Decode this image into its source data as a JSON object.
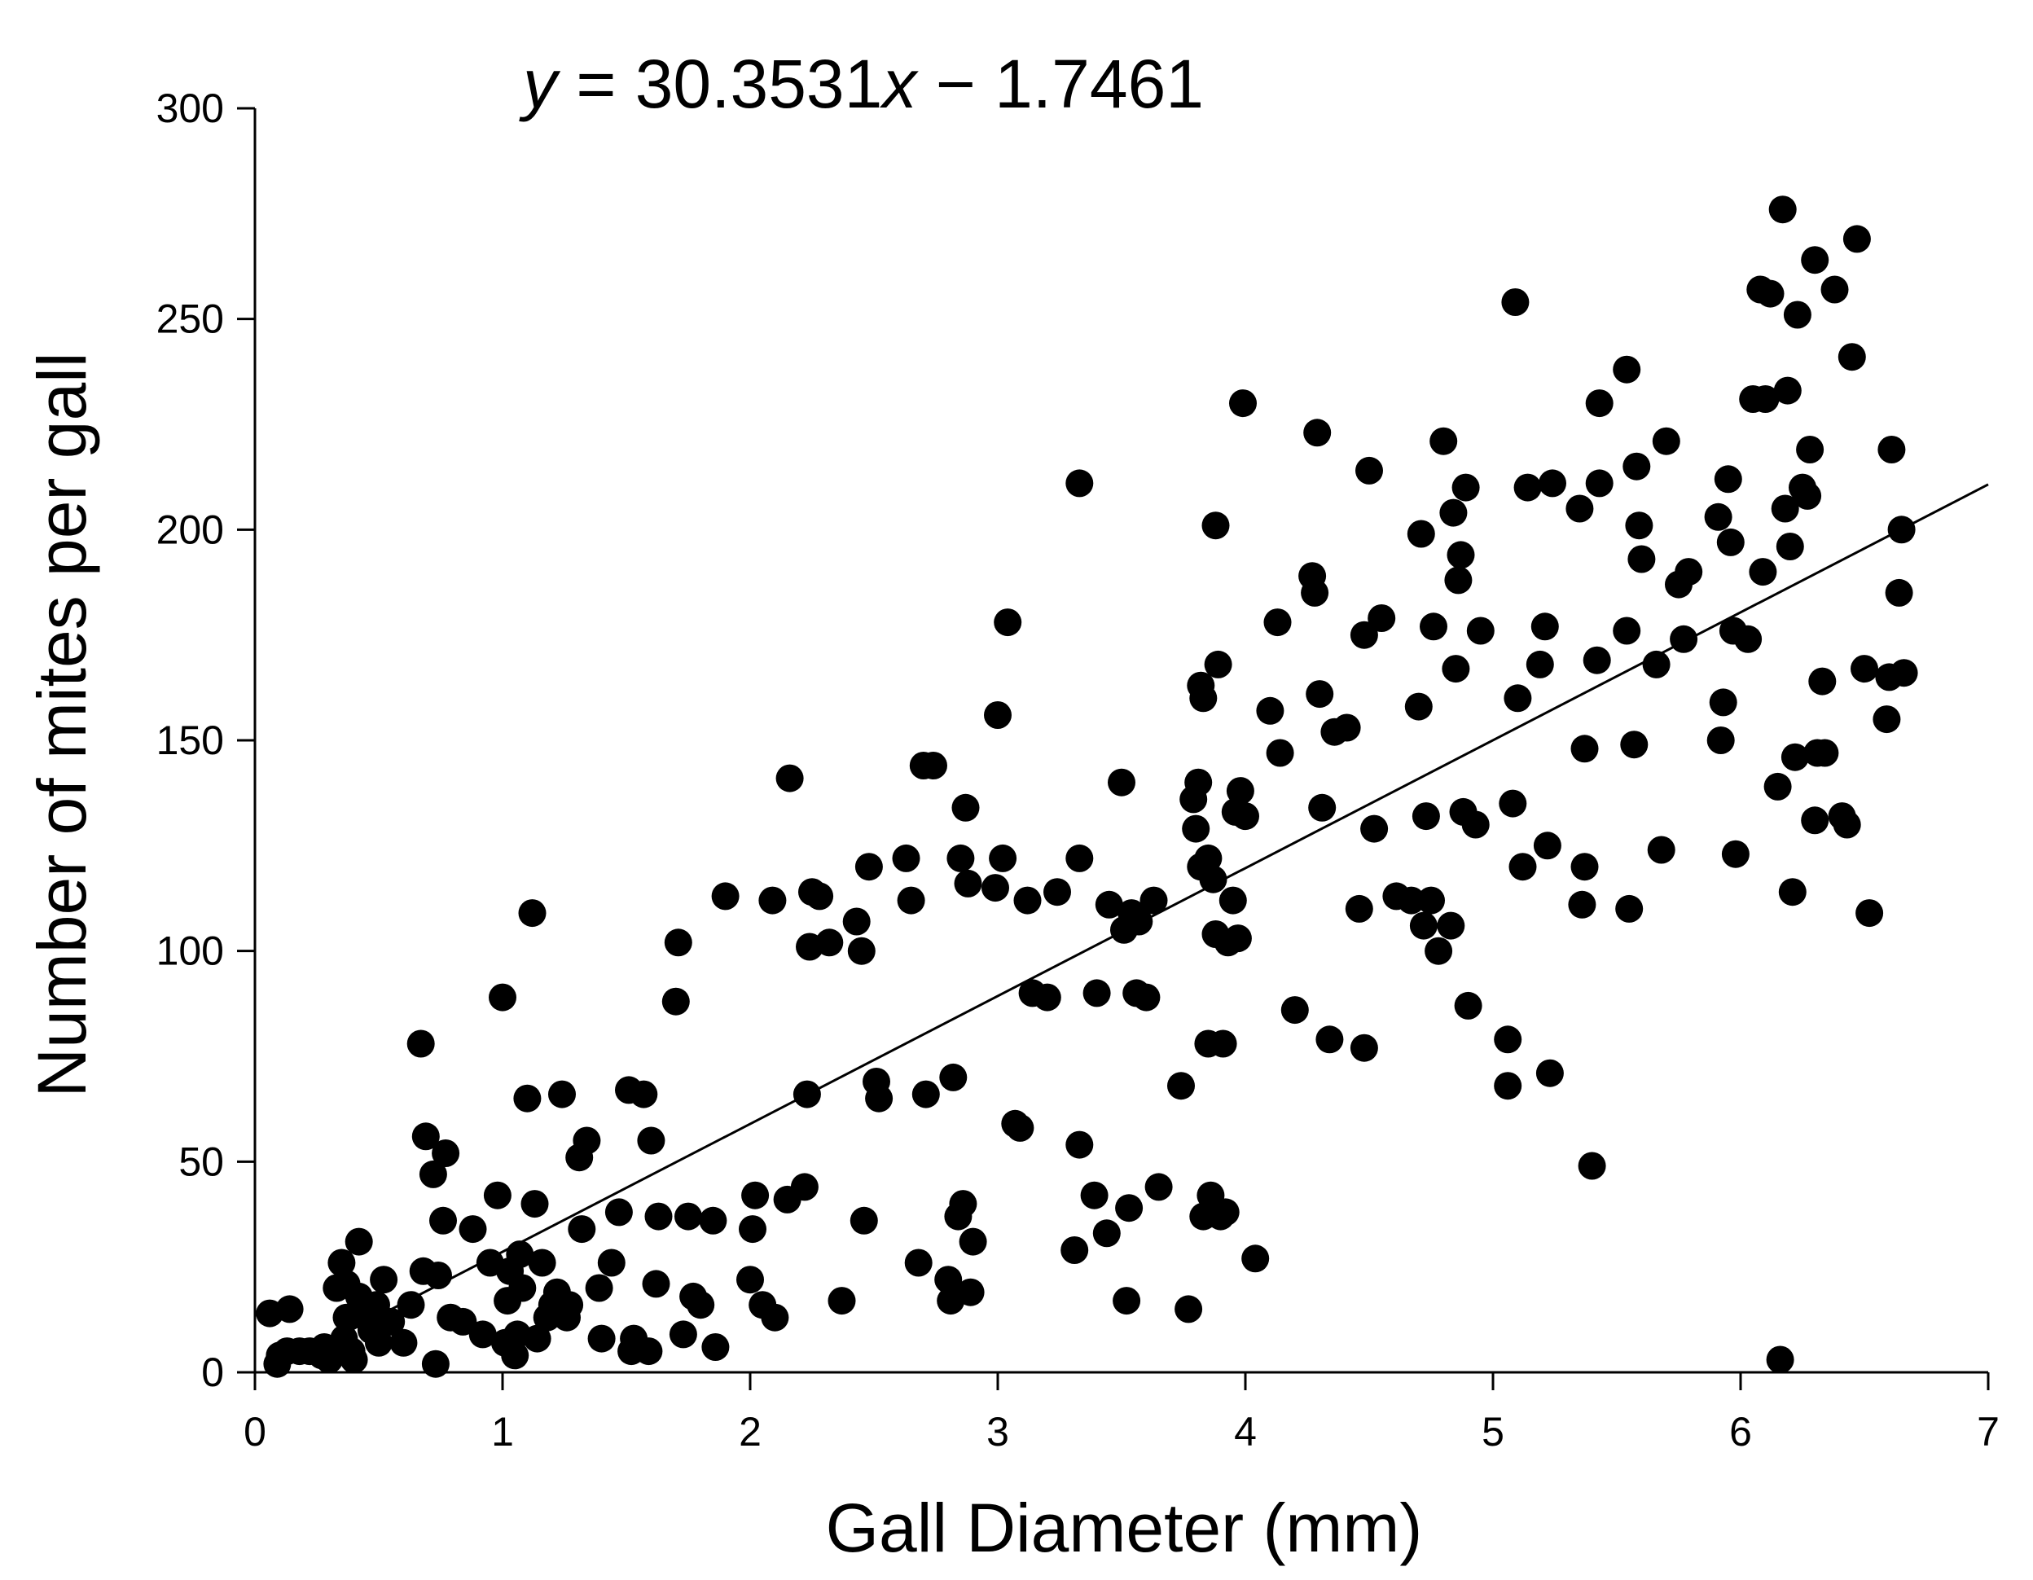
{
  "chart_data": {
    "type": "scatter",
    "title_parts": [
      {
        "text": "y",
        "italic": true
      },
      {
        "text": " = 30.3531",
        "italic": false
      },
      {
        "text": "x",
        "italic": true
      },
      {
        "text": " − 1.7461",
        "italic": false
      }
    ],
    "xlabel": "Gall Diameter (mm)",
    "ylabel": "Number of mites per gall",
    "xlim": [
      0,
      7
    ],
    "ylim": [
      0,
      300
    ],
    "x_ticks": [
      0,
      1,
      2,
      3,
      4,
      5,
      6,
      7
    ],
    "y_ticks": [
      0,
      50,
      100,
      150,
      200,
      250,
      300
    ],
    "grid": false,
    "legend": "none",
    "point_color": "#000000",
    "trendline": {
      "slope": 30.3531,
      "intercept": -1.7461,
      "x_range": [
        0.05,
        7.0
      ],
      "color": "#000000"
    },
    "series": [
      {
        "points": [
          [
            0.06,
            14
          ],
          [
            0.09,
            2
          ],
          [
            0.1,
            4
          ],
          [
            0.13,
            5
          ],
          [
            0.14,
            15
          ],
          [
            0.18,
            5
          ],
          [
            0.22,
            5
          ],
          [
            0.27,
            4
          ],
          [
            0.28,
            6
          ],
          [
            0.3,
            3
          ],
          [
            0.33,
            20
          ],
          [
            0.35,
            26
          ],
          [
            0.36,
            8
          ],
          [
            0.37,
            13
          ],
          [
            0.37,
            21
          ],
          [
            0.39,
            5
          ],
          [
            0.4,
            3
          ],
          [
            0.42,
            18
          ],
          [
            0.42,
            31
          ],
          [
            0.45,
            13
          ],
          [
            0.47,
            10
          ],
          [
            0.49,
            16
          ],
          [
            0.5,
            7
          ],
          [
            0.52,
            22
          ],
          [
            0.55,
            12
          ],
          [
            0.6,
            7
          ],
          [
            0.63,
            16
          ],
          [
            0.67,
            78
          ],
          [
            0.68,
            24
          ],
          [
            0.69,
            56
          ],
          [
            0.72,
            47
          ],
          [
            0.73,
            2
          ],
          [
            0.74,
            23
          ],
          [
            0.76,
            36
          ],
          [
            0.77,
            52
          ],
          [
            0.79,
            13
          ],
          [
            0.84,
            12
          ],
          [
            0.88,
            34
          ],
          [
            0.92,
            9
          ],
          [
            0.95,
            26
          ],
          [
            0.98,
            42
          ],
          [
            1.0,
            89
          ],
          [
            1.01,
            7
          ],
          [
            1.02,
            17
          ],
          [
            1.03,
            24
          ],
          [
            1.05,
            4
          ],
          [
            1.06,
            9
          ],
          [
            1.07,
            28
          ],
          [
            1.08,
            20
          ],
          [
            1.1,
            65
          ],
          [
            1.12,
            109
          ],
          [
            1.13,
            40
          ],
          [
            1.14,
            8
          ],
          [
            1.16,
            26
          ],
          [
            1.18,
            13
          ],
          [
            1.2,
            16
          ],
          [
            1.22,
            19
          ],
          [
            1.24,
            66
          ],
          [
            1.26,
            13
          ],
          [
            1.27,
            16
          ],
          [
            1.31,
            51
          ],
          [
            1.32,
            34
          ],
          [
            1.34,
            55
          ],
          [
            1.39,
            20
          ],
          [
            1.4,
            8
          ],
          [
            1.44,
            26
          ],
          [
            1.47,
            38
          ],
          [
            1.51,
            67
          ],
          [
            1.52,
            5
          ],
          [
            1.53,
            8
          ],
          [
            1.57,
            66
          ],
          [
            1.59,
            5
          ],
          [
            1.6,
            55
          ],
          [
            1.62,
            21
          ],
          [
            1.63,
            37
          ],
          [
            1.7,
            88
          ],
          [
            1.71,
            102
          ],
          [
            1.73,
            9
          ],
          [
            1.75,
            37
          ],
          [
            1.77,
            18
          ],
          [
            1.8,
            16
          ],
          [
            1.85,
            36
          ],
          [
            1.86,
            6
          ],
          [
            1.9,
            113
          ],
          [
            2.0,
            22
          ],
          [
            2.01,
            34
          ],
          [
            2.02,
            42
          ],
          [
            2.05,
            16
          ],
          [
            2.09,
            112
          ],
          [
            2.1,
            13
          ],
          [
            2.15,
            41
          ],
          [
            2.16,
            141
          ],
          [
            2.22,
            44
          ],
          [
            2.23,
            66
          ],
          [
            2.24,
            101
          ],
          [
            2.25,
            114
          ],
          [
            2.28,
            113
          ],
          [
            2.32,
            102
          ],
          [
            2.37,
            17
          ],
          [
            2.43,
            107
          ],
          [
            2.45,
            100
          ],
          [
            2.46,
            36
          ],
          [
            2.48,
            120
          ],
          [
            2.51,
            69
          ],
          [
            2.52,
            65
          ],
          [
            2.63,
            122
          ],
          [
            2.65,
            112
          ],
          [
            2.68,
            26
          ],
          [
            2.7,
            144
          ],
          [
            2.71,
            66
          ],
          [
            2.74,
            144
          ],
          [
            2.8,
            22
          ],
          [
            2.81,
            17
          ],
          [
            2.82,
            70
          ],
          [
            2.84,
            37
          ],
          [
            2.85,
            122
          ],
          [
            2.86,
            40
          ],
          [
            2.87,
            134
          ],
          [
            2.88,
            116
          ],
          [
            2.89,
            19
          ],
          [
            2.9,
            31
          ],
          [
            2.99,
            115
          ],
          [
            3.0,
            156
          ],
          [
            3.02,
            122
          ],
          [
            3.04,
            178
          ],
          [
            3.07,
            59
          ],
          [
            3.09,
            58
          ],
          [
            3.12,
            112
          ],
          [
            3.14,
            90
          ],
          [
            3.2,
            89
          ],
          [
            3.24,
            114
          ],
          [
            3.31,
            29
          ],
          [
            3.33,
            54
          ],
          [
            3.33,
            211
          ],
          [
            3.33,
            122
          ],
          [
            3.39,
            42
          ],
          [
            3.4,
            90
          ],
          [
            3.44,
            33
          ],
          [
            3.45,
            111
          ],
          [
            3.5,
            140
          ],
          [
            3.51,
            105
          ],
          [
            3.52,
            17
          ],
          [
            3.53,
            39
          ],
          [
            3.54,
            109
          ],
          [
            3.56,
            90
          ],
          [
            3.57,
            107
          ],
          [
            3.6,
            89
          ],
          [
            3.63,
            112
          ],
          [
            3.65,
            44
          ],
          [
            3.74,
            68
          ],
          [
            3.77,
            15
          ],
          [
            3.79,
            136
          ],
          [
            3.8,
            129
          ],
          [
            3.81,
            140
          ],
          [
            3.82,
            120
          ],
          [
            3.82,
            163
          ],
          [
            3.83,
            37
          ],
          [
            3.83,
            160
          ],
          [
            3.85,
            122
          ],
          [
            3.85,
            78
          ],
          [
            3.86,
            42
          ],
          [
            3.87,
            117
          ],
          [
            3.88,
            201
          ],
          [
            3.88,
            104
          ],
          [
            3.89,
            168
          ],
          [
            3.9,
            37
          ],
          [
            3.91,
            78
          ],
          [
            3.92,
            38
          ],
          [
            3.93,
            102
          ],
          [
            3.95,
            112
          ],
          [
            3.96,
            133
          ],
          [
            3.97,
            103
          ],
          [
            3.98,
            138
          ],
          [
            3.99,
            230
          ],
          [
            4.0,
            132
          ],
          [
            4.04,
            27
          ],
          [
            4.1,
            157
          ],
          [
            4.13,
            178
          ],
          [
            4.14,
            147
          ],
          [
            4.2,
            86
          ],
          [
            4.27,
            189
          ],
          [
            4.28,
            185
          ],
          [
            4.29,
            223
          ],
          [
            4.3,
            161
          ],
          [
            4.31,
            134
          ],
          [
            4.34,
            79
          ],
          [
            4.36,
            152
          ],
          [
            4.41,
            153
          ],
          [
            4.46,
            110
          ],
          [
            4.48,
            175
          ],
          [
            4.48,
            77
          ],
          [
            4.5,
            214
          ],
          [
            4.52,
            129
          ],
          [
            4.55,
            179
          ],
          [
            4.61,
            113
          ],
          [
            4.67,
            112
          ],
          [
            4.7,
            158
          ],
          [
            4.71,
            199
          ],
          [
            4.72,
            106
          ],
          [
            4.73,
            132
          ],
          [
            4.75,
            112
          ],
          [
            4.76,
            177
          ],
          [
            4.78,
            100
          ],
          [
            4.8,
            221
          ],
          [
            4.83,
            106
          ],
          [
            4.84,
            204
          ],
          [
            4.85,
            167
          ],
          [
            4.86,
            188
          ],
          [
            4.87,
            194
          ],
          [
            4.88,
            133
          ],
          [
            4.89,
            210
          ],
          [
            4.9,
            87
          ],
          [
            4.93,
            130
          ],
          [
            4.95,
            176
          ],
          [
            5.06,
            79
          ],
          [
            5.06,
            68
          ],
          [
            5.08,
            135
          ],
          [
            5.09,
            254
          ],
          [
            5.1,
            160
          ],
          [
            5.12,
            120
          ],
          [
            5.14,
            210
          ],
          [
            5.19,
            168
          ],
          [
            5.21,
            177
          ],
          [
            5.22,
            125
          ],
          [
            5.23,
            71
          ],
          [
            5.24,
            211
          ],
          [
            5.35,
            205
          ],
          [
            5.36,
            111
          ],
          [
            5.37,
            148
          ],
          [
            5.37,
            120
          ],
          [
            5.4,
            49
          ],
          [
            5.42,
            169
          ],
          [
            5.43,
            230
          ],
          [
            5.43,
            211
          ],
          [
            5.54,
            176
          ],
          [
            5.54,
            238
          ],
          [
            5.55,
            110
          ],
          [
            5.57,
            149
          ],
          [
            5.58,
            215
          ],
          [
            5.59,
            201
          ],
          [
            5.6,
            193
          ],
          [
            5.66,
            168
          ],
          [
            5.68,
            124
          ],
          [
            5.7,
            221
          ],
          [
            5.75,
            187
          ],
          [
            5.77,
            174
          ],
          [
            5.79,
            190
          ],
          [
            5.91,
            203
          ],
          [
            5.92,
            150
          ],
          [
            5.93,
            159
          ],
          [
            5.95,
            212
          ],
          [
            5.96,
            197
          ],
          [
            5.97,
            176
          ],
          [
            5.98,
            123
          ],
          [
            6.03,
            174
          ],
          [
            6.05,
            231
          ],
          [
            6.08,
            257
          ],
          [
            6.09,
            190
          ],
          [
            6.1,
            231
          ],
          [
            6.12,
            256
          ],
          [
            6.15,
            139
          ],
          [
            6.16,
            3
          ],
          [
            6.17,
            276
          ],
          [
            6.18,
            205
          ],
          [
            6.19,
            233
          ],
          [
            6.2,
            196
          ],
          [
            6.21,
            114
          ],
          [
            6.22,
            146
          ],
          [
            6.23,
            251
          ],
          [
            6.25,
            210
          ],
          [
            6.27,
            208
          ],
          [
            6.28,
            219
          ],
          [
            6.3,
            131
          ],
          [
            6.3,
            264
          ],
          [
            6.31,
            147
          ],
          [
            6.33,
            164
          ],
          [
            6.34,
            147
          ],
          [
            6.38,
            257
          ],
          [
            6.41,
            132
          ],
          [
            6.43,
            130
          ],
          [
            6.45,
            241
          ],
          [
            6.47,
            269
          ],
          [
            6.5,
            167
          ],
          [
            6.52,
            109
          ],
          [
            6.59,
            155
          ],
          [
            6.6,
            165
          ],
          [
            6.61,
            219
          ],
          [
            6.64,
            185
          ],
          [
            6.65,
            200
          ],
          [
            6.66,
            166
          ]
        ]
      }
    ]
  }
}
